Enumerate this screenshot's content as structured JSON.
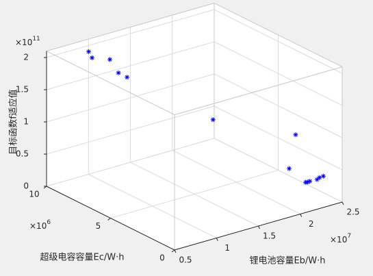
{
  "chart_data": {
    "type": "scatter3d",
    "xlabel": "锂电池容量Eb/W·h",
    "ylabel": "超级电容容量Ec/W·h",
    "zlabel": "目标函数f适应值",
    "x_exponent": {
      "base": "×10",
      "power": "7"
    },
    "y_exponent": {
      "base": "×10",
      "power": "6"
    },
    "z_exponent": {
      "base": "×10",
      "power": "11"
    },
    "x": [
      0.85,
      0.89,
      0.95,
      0.9,
      0.85,
      1.57,
      2.25,
      2.02,
      2.14,
      2.15,
      2.16,
      2.23,
      2.26,
      2.29
    ],
    "y": [
      9,
      9,
      8,
      7,
      6,
      4,
      2,
      1,
      0.5,
      0.4,
      0.3,
      0.2,
      0.2,
      0.1
    ],
    "z": [
      2.06,
      1.95,
      2.0,
      1.91,
      1.96,
      1.23,
      0.94,
      0.6,
      0.39,
      0.4,
      0.42,
      0.43,
      0.45,
      0.47
    ],
    "color": "#0000ff",
    "xlim": [
      0.5,
      2.5
    ],
    "ylim": [
      0,
      10
    ],
    "zlim": [
      0,
      2.1
    ],
    "xticks": [
      0.5,
      1,
      1.5,
      2,
      2.5
    ],
    "yticks": [
      0,
      5,
      10
    ],
    "zticks": [
      0,
      0.5,
      1,
      1.5,
      2
    ],
    "grid": true
  }
}
